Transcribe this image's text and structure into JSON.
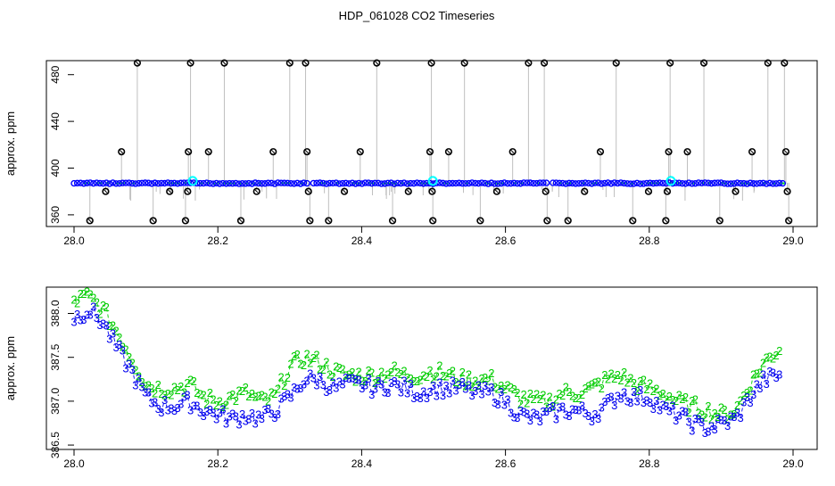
{
  "colors": {
    "frame": "#000000",
    "flag_marker": "#000000",
    "base_marker": "#0000ff",
    "base_accent": "#00ff00",
    "highlight_marker": "#00ffff",
    "stem_line": "#7f7f7f",
    "label_2": "#00cc00",
    "label_3": "#0000ee"
  },
  "chart_data": [
    {
      "id": "top",
      "type": "scatter",
      "title": "HDP_061028  CO2 Timeseries",
      "xlabel": "",
      "ylabel": "approx. ppm",
      "xlim": [
        28.0,
        29.0
      ],
      "ylim": [
        350,
        492
      ],
      "xticks": [
        28.0,
        28.2,
        28.4,
        28.6,
        28.8,
        29.0
      ],
      "xtick_labels": [
        "28.0",
        "28.2",
        "28.4",
        "28.6",
        "28.8",
        "29.0"
      ],
      "yticks": [
        360,
        400,
        440,
        480
      ],
      "ytick_labels": [
        "360",
        "400",
        "440",
        "480"
      ],
      "grid": false,
      "baseline": 387,
      "baseline_marker_positions": {
        "start": 28.0,
        "end": 28.99,
        "step": 0.0045
      },
      "gaps": [
        28.328,
        28.661
      ],
      "highlight_points": [
        {
          "x": 28.165,
          "y": 389
        },
        {
          "x": 28.499,
          "y": 389
        },
        {
          "x": 28.83,
          "y": 389
        }
      ],
      "series": [
        {
          "kind": "flagged",
          "points": [
            {
              "x": 28.022,
              "y": 355
            },
            {
              "x": 28.044,
              "y": 380
            },
            {
              "x": 28.066,
              "y": 414
            },
            {
              "x": 28.088,
              "y": 490
            },
            {
              "x": 28.11,
              "y": 355
            },
            {
              "x": 28.133,
              "y": 380
            },
            {
              "x": 28.155,
              "y": 355
            },
            {
              "x": 28.158,
              "y": 380
            },
            {
              "x": 28.159,
              "y": 414
            },
            {
              "x": 28.162,
              "y": 490
            },
            {
              "x": 28.187,
              "y": 414
            },
            {
              "x": 28.209,
              "y": 490
            },
            {
              "x": 28.232,
              "y": 355
            },
            {
              "x": 28.254,
              "y": 380
            },
            {
              "x": 28.277,
              "y": 414
            },
            {
              "x": 28.3,
              "y": 490
            },
            {
              "x": 28.322,
              "y": 490
            },
            {
              "x": 28.324,
              "y": 414
            },
            {
              "x": 28.326,
              "y": 380
            },
            {
              "x": 28.328,
              "y": 355
            },
            {
              "x": 28.354,
              "y": 355
            },
            {
              "x": 28.376,
              "y": 380
            },
            {
              "x": 28.398,
              "y": 414
            },
            {
              "x": 28.421,
              "y": 490
            },
            {
              "x": 28.443,
              "y": 355
            },
            {
              "x": 28.465,
              "y": 380
            },
            {
              "x": 28.495,
              "y": 414
            },
            {
              "x": 28.497,
              "y": 490
            },
            {
              "x": 28.498,
              "y": 380
            },
            {
              "x": 28.499,
              "y": 355
            },
            {
              "x": 28.521,
              "y": 414
            },
            {
              "x": 28.543,
              "y": 490
            },
            {
              "x": 28.565,
              "y": 355
            },
            {
              "x": 28.588,
              "y": 380
            },
            {
              "x": 28.61,
              "y": 414
            },
            {
              "x": 28.632,
              "y": 490
            },
            {
              "x": 28.654,
              "y": 490
            },
            {
              "x": 28.656,
              "y": 380
            },
            {
              "x": 28.658,
              "y": 355
            },
            {
              "x": 28.687,
              "y": 355
            },
            {
              "x": 28.71,
              "y": 380
            },
            {
              "x": 28.732,
              "y": 414
            },
            {
              "x": 28.754,
              "y": 490
            },
            {
              "x": 28.777,
              "y": 355
            },
            {
              "x": 28.799,
              "y": 380
            },
            {
              "x": 28.823,
              "y": 355
            },
            {
              "x": 28.825,
              "y": 380
            },
            {
              "x": 28.827,
              "y": 414
            },
            {
              "x": 28.829,
              "y": 490
            },
            {
              "x": 28.853,
              "y": 414
            },
            {
              "x": 28.876,
              "y": 490
            },
            {
              "x": 28.898,
              "y": 355
            },
            {
              "x": 28.92,
              "y": 380
            },
            {
              "x": 28.943,
              "y": 414
            },
            {
              "x": 28.965,
              "y": 490
            },
            {
              "x": 28.988,
              "y": 490
            },
            {
              "x": 28.99,
              "y": 414
            },
            {
              "x": 28.992,
              "y": 380
            },
            {
              "x": 28.994,
              "y": 355
            }
          ]
        }
      ]
    },
    {
      "id": "bottom",
      "type": "scatter",
      "title": "",
      "xlabel": "",
      "ylabel": "approx. ppm",
      "xlim": [
        28.0,
        29.0
      ],
      "ylim": [
        386.45,
        388.3
      ],
      "xticks": [
        28.0,
        28.2,
        28.4,
        28.6,
        28.8,
        29.0
      ],
      "xtick_labels": [
        "28.0",
        "28.2",
        "28.4",
        "28.6",
        "28.8",
        "29.0"
      ],
      "yticks": [
        386.5,
        387.0,
        387.5,
        388.0
      ],
      "ytick_labels": [
        "386.5",
        "387.0",
        "387.5",
        "388.0"
      ],
      "grid": false,
      "series": [
        {
          "name": "2",
          "mean_offset": 0.12,
          "points": [
            [
              28.0,
              388.15
            ],
            [
              28.02,
              388.2
            ],
            [
              28.04,
              388.05
            ],
            [
              28.06,
              387.8
            ],
            [
              28.08,
              387.5
            ],
            [
              28.1,
              387.2
            ],
            [
              28.12,
              387.15
            ],
            [
              28.14,
              387.15
            ],
            [
              28.16,
              387.2
            ],
            [
              28.18,
              387.05
            ],
            [
              28.2,
              387.0
            ],
            [
              28.22,
              387.05
            ],
            [
              28.24,
              387.1
            ],
            [
              28.26,
              387.0
            ],
            [
              28.28,
              387.05
            ],
            [
              28.3,
              387.4
            ],
            [
              28.32,
              387.5
            ],
            [
              28.34,
              387.45
            ],
            [
              28.36,
              387.35
            ],
            [
              28.38,
              387.3
            ],
            [
              28.4,
              387.3
            ],
            [
              28.42,
              387.3
            ],
            [
              28.44,
              387.35
            ],
            [
              28.46,
              387.3
            ],
            [
              28.48,
              387.3
            ],
            [
              28.5,
              387.35
            ],
            [
              28.52,
              387.3
            ],
            [
              28.54,
              387.25
            ],
            [
              28.56,
              387.25
            ],
            [
              28.58,
              387.25
            ],
            [
              28.6,
              387.15
            ],
            [
              28.62,
              387.05
            ],
            [
              28.64,
              387.0
            ],
            [
              28.66,
              387.0
            ],
            [
              28.68,
              387.1
            ],
            [
              28.7,
              387.1
            ],
            [
              28.72,
              387.15
            ],
            [
              28.74,
              387.25
            ],
            [
              28.76,
              387.3
            ],
            [
              28.78,
              387.2
            ],
            [
              28.8,
              387.15
            ],
            [
              28.82,
              387.1
            ],
            [
              28.84,
              387.0
            ],
            [
              28.86,
              386.95
            ],
            [
              28.88,
              386.9
            ],
            [
              28.9,
              386.85
            ],
            [
              28.92,
              386.9
            ],
            [
              28.94,
              387.2
            ],
            [
              28.96,
              387.45
            ],
            [
              28.98,
              387.6
            ]
          ]
        },
        {
          "name": "3",
          "mean_offset": -0.12,
          "points": [
            [
              28.0,
              387.95
            ],
            [
              28.02,
              388.05
            ],
            [
              28.04,
              387.9
            ],
            [
              28.06,
              387.6
            ],
            [
              28.08,
              387.35
            ],
            [
              28.1,
              387.05
            ],
            [
              28.12,
              386.95
            ],
            [
              28.14,
              386.95
            ],
            [
              28.16,
              387.0
            ],
            [
              28.18,
              386.9
            ],
            [
              28.2,
              386.85
            ],
            [
              28.22,
              386.8
            ],
            [
              28.24,
              386.85
            ],
            [
              28.26,
              386.8
            ],
            [
              28.28,
              386.9
            ],
            [
              28.3,
              387.05
            ],
            [
              28.32,
              387.25
            ],
            [
              28.34,
              387.25
            ],
            [
              28.36,
              387.15
            ],
            [
              28.38,
              387.2
            ],
            [
              28.4,
              387.2
            ],
            [
              28.42,
              387.15
            ],
            [
              28.44,
              387.2
            ],
            [
              28.46,
              387.15
            ],
            [
              28.48,
              387.1
            ],
            [
              28.5,
              387.15
            ],
            [
              28.52,
              387.15
            ],
            [
              28.54,
              387.15
            ],
            [
              28.56,
              387.1
            ],
            [
              28.58,
              387.1
            ],
            [
              28.6,
              387.0
            ],
            [
              28.62,
              386.85
            ],
            [
              28.64,
              386.8
            ],
            [
              28.66,
              386.85
            ],
            [
              28.68,
              386.9
            ],
            [
              28.7,
              386.9
            ],
            [
              28.72,
              386.85
            ],
            [
              28.74,
              386.95
            ],
            [
              28.76,
              387.1
            ],
            [
              28.78,
              387.05
            ],
            [
              28.8,
              387.05
            ],
            [
              28.82,
              386.9
            ],
            [
              28.84,
              386.85
            ],
            [
              28.86,
              386.75
            ],
            [
              28.88,
              386.7
            ],
            [
              28.9,
              386.75
            ],
            [
              28.92,
              386.8
            ],
            [
              28.94,
              387.05
            ],
            [
              28.96,
              387.25
            ],
            [
              28.98,
              387.3
            ]
          ]
        }
      ]
    }
  ]
}
